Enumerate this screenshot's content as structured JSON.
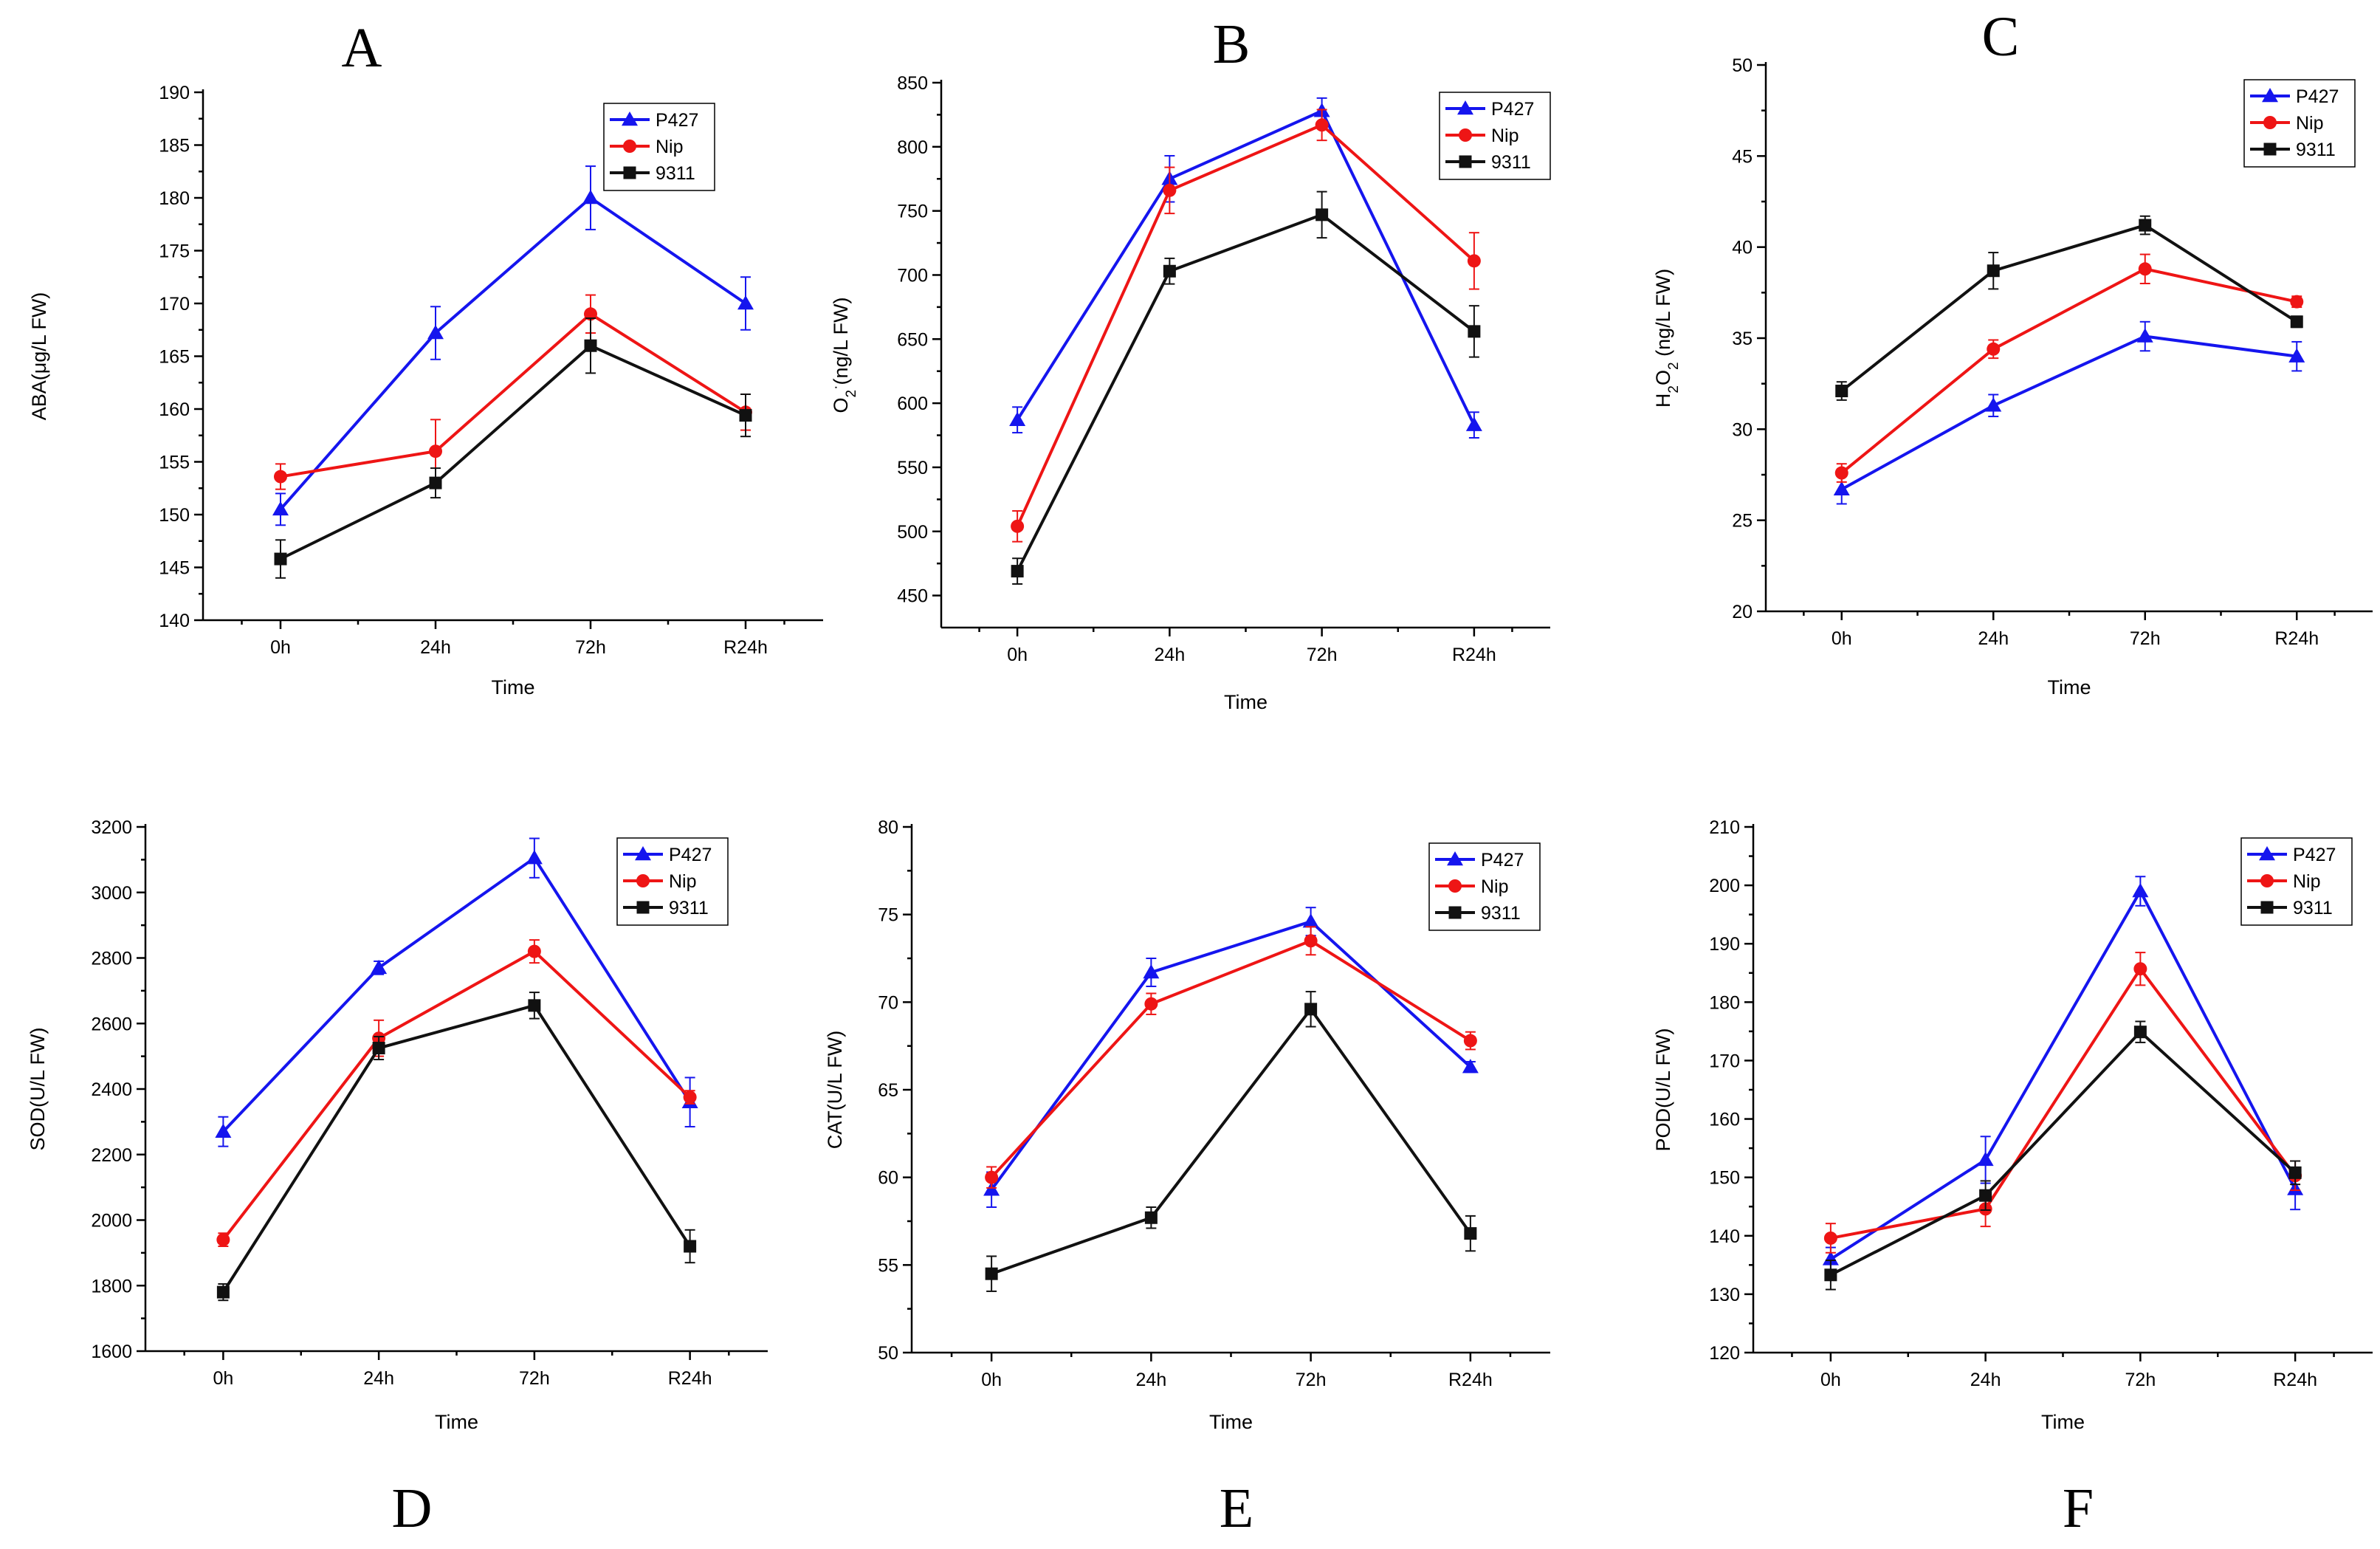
{
  "series_styles": [
    {
      "name": "P427",
      "color": "#1515ee",
      "marker": "triangle"
    },
    {
      "name": "Nip",
      "color": "#ee1515",
      "marker": "circle"
    },
    {
      "name": "9311",
      "color": "#111111",
      "marker": "square"
    }
  ],
  "chart_data": [
    {
      "type": "line",
      "panel": "A",
      "title": "A",
      "xlabel": "Time",
      "ylabel_parts": [
        {
          "t": "ABA(μg/L FW)"
        }
      ],
      "categories": [
        "0h",
        "24h",
        "72h",
        "R24h"
      ],
      "ylim": [
        140,
        190
      ],
      "yticks": [
        140,
        145,
        150,
        155,
        160,
        165,
        170,
        175,
        180,
        185,
        190
      ],
      "legend": [
        "P427",
        "Nip",
        "9311"
      ],
      "series": [
        {
          "name": "P427",
          "values": [
            150.5,
            167.2,
            180.0,
            170.0
          ],
          "errors": [
            1.5,
            2.5,
            3.0,
            2.5
          ]
        },
        {
          "name": "Nip",
          "values": [
            153.6,
            156.0,
            169.0,
            159.7
          ],
          "errors": [
            1.2,
            3.0,
            1.8,
            1.7
          ]
        },
        {
          "name": "9311",
          "values": [
            145.8,
            153.0,
            166.0,
            159.4
          ],
          "errors": [
            1.8,
            1.4,
            2.6,
            2.0
          ]
        }
      ]
    },
    {
      "type": "line",
      "panel": "B",
      "title": "B",
      "xlabel": "Time",
      "ylabel_parts": [
        {
          "t": "O"
        },
        {
          "t": "2",
          "sub": true
        },
        {
          "t": "·",
          "sup": true
        },
        {
          "t": "(ng/L FW)"
        }
      ],
      "categories": [
        "0h",
        "24h",
        "72h",
        "R24h"
      ],
      "ylim": [
        425,
        850
      ],
      "yticks": [
        450,
        500,
        550,
        600,
        650,
        700,
        750,
        800,
        850
      ],
      "legend": [
        "P427",
        "Nip",
        "9311"
      ],
      "series": [
        {
          "name": "P427",
          "values": [
            587,
            775,
            828,
            583
          ],
          "errors": [
            10,
            18,
            10,
            10
          ]
        },
        {
          "name": "Nip",
          "values": [
            504,
            766,
            817,
            711
          ],
          "errors": [
            12,
            18,
            12,
            22
          ]
        },
        {
          "name": "9311",
          "values": [
            469,
            703,
            747,
            656
          ],
          "errors": [
            10,
            10,
            18,
            20
          ]
        }
      ]
    },
    {
      "type": "line",
      "panel": "C",
      "title": "C",
      "xlabel": "Time",
      "ylabel_parts": [
        {
          "t": "H"
        },
        {
          "t": "2",
          "sub": true
        },
        {
          "t": "O"
        },
        {
          "t": "2",
          "sub": true
        },
        {
          "t": " (ng/L FW)"
        }
      ],
      "categories": [
        "0h",
        "24h",
        "72h",
        "R24h"
      ],
      "ylim": [
        20,
        50
      ],
      "yticks": [
        20,
        25,
        30,
        35,
        40,
        45,
        50
      ],
      "legend": [
        "P427",
        "Nip",
        "9311"
      ],
      "series": [
        {
          "name": "P427",
          "values": [
            26.7,
            31.3,
            35.1,
            34.0
          ],
          "errors": [
            0.8,
            0.6,
            0.8,
            0.8
          ]
        },
        {
          "name": "Nip",
          "values": [
            27.6,
            34.4,
            38.8,
            37.0
          ],
          "errors": [
            0.5,
            0.5,
            0.8,
            0.3
          ]
        },
        {
          "name": "9311",
          "values": [
            32.1,
            38.7,
            41.2,
            35.9
          ],
          "errors": [
            0.5,
            1.0,
            0.5,
            0.3
          ]
        }
      ]
    },
    {
      "type": "line",
      "panel": "D",
      "title": "D",
      "xlabel": "Time",
      "ylabel_parts": [
        {
          "t": "SOD(U/L FW)"
        }
      ],
      "categories": [
        "0h",
        "24h",
        "72h",
        "R24h"
      ],
      "ylim": [
        1600,
        3200
      ],
      "yticks": [
        1600,
        1800,
        2000,
        2200,
        2400,
        2600,
        2800,
        3000,
        3200
      ],
      "legend": [
        "P427",
        "Nip",
        "9311"
      ],
      "series": [
        {
          "name": "P427",
          "values": [
            2270,
            2770,
            3105,
            2360
          ],
          "errors": [
            45,
            20,
            60,
            75
          ]
        },
        {
          "name": "Nip",
          "values": [
            1940,
            2555,
            2820,
            2375
          ],
          "errors": [
            20,
            55,
            35,
            20
          ]
        },
        {
          "name": "9311",
          "values": [
            1780,
            2525,
            2655,
            1920
          ],
          "errors": [
            25,
            35,
            40,
            50
          ]
        }
      ]
    },
    {
      "type": "line",
      "panel": "E",
      "title": "E",
      "xlabel": "Time",
      "ylabel_parts": [
        {
          "t": "CAT(U/L FW)"
        }
      ],
      "categories": [
        "0h",
        "24h",
        "72h",
        "R24h"
      ],
      "ylim": [
        50,
        80
      ],
      "yticks": [
        50,
        55,
        60,
        65,
        70,
        75,
        80
      ],
      "legend": [
        "P427",
        "Nip",
        "9311"
      ],
      "series": [
        {
          "name": "P427",
          "values": [
            59.3,
            71.7,
            74.6,
            66.3
          ],
          "errors": [
            1.0,
            0.8,
            0.8,
            0.3
          ]
        },
        {
          "name": "Nip",
          "values": [
            60.0,
            69.9,
            73.5,
            67.8
          ],
          "errors": [
            0.6,
            0.6,
            0.8,
            0.5
          ]
        },
        {
          "name": "9311",
          "values": [
            54.5,
            57.7,
            69.6,
            56.8
          ],
          "errors": [
            1.0,
            0.6,
            1.0,
            1.0
          ]
        }
      ]
    },
    {
      "type": "line",
      "panel": "F",
      "title": "F",
      "xlabel": "Time",
      "ylabel_parts": [
        {
          "t": "POD(U/L FW)"
        }
      ],
      "categories": [
        "0h",
        "24h",
        "72h",
        "R24h"
      ],
      "ylim": [
        120,
        210
      ],
      "yticks": [
        120,
        130,
        140,
        150,
        160,
        170,
        180,
        190,
        200,
        210
      ],
      "legend": [
        "P427",
        "Nip",
        "9311"
      ],
      "series": [
        {
          "name": "P427",
          "values": [
            136.0,
            153.0,
            199.0,
            148.0
          ],
          "errors": [
            2.0,
            4.0,
            2.5,
            3.5
          ]
        },
        {
          "name": "Nip",
          "values": [
            139.6,
            144.6,
            185.7,
            150.3
          ],
          "errors": [
            2.5,
            3.0,
            2.8,
            2.5
          ]
        },
        {
          "name": "9311",
          "values": [
            133.3,
            146.9,
            174.9,
            150.8
          ],
          "errors": [
            2.5,
            2.5,
            1.8,
            2.0
          ]
        }
      ]
    }
  ]
}
